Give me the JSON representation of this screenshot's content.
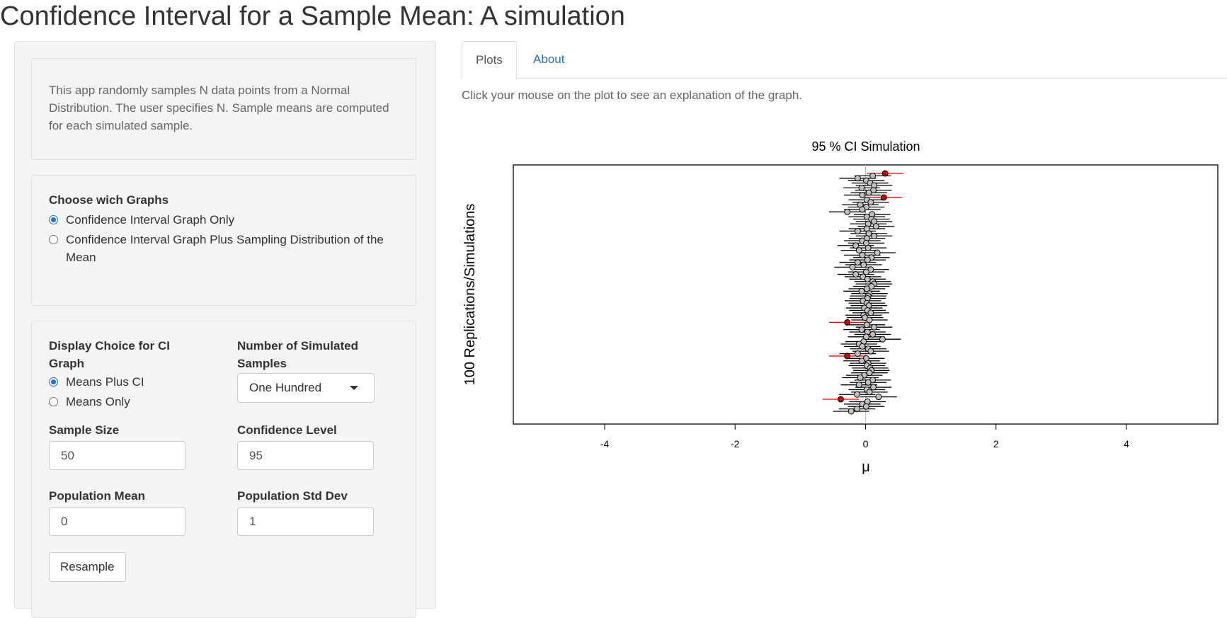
{
  "app": {
    "title": "Confidence Interval for a Sample Mean: A simulation"
  },
  "sidebar": {
    "intro": "This app randomly samples N data points from a Normal Distribution. The user specifies N. Sample means are computed for each simulated sample.",
    "graphs": {
      "label": "Choose wich Graphs",
      "options": [
        "Confidence Interval Graph Only",
        "Confidence Interval Graph Plus Sampling Distribution of the Mean"
      ],
      "selected": 0
    },
    "display": {
      "label": "Display Choice for CI Graph",
      "options": [
        "Means Plus CI",
        "Means Only"
      ],
      "selected": 0
    },
    "num_samples": {
      "label": "Number of Simulated Samples",
      "value": "One Hundred"
    },
    "sample_size": {
      "label": "Sample Size",
      "value": "50"
    },
    "confidence": {
      "label": "Confidence Level",
      "value": "95"
    },
    "pop_mean": {
      "label": "Population Mean",
      "value": "0"
    },
    "pop_sd": {
      "label": "Population Std Dev",
      "value": "1"
    },
    "resample_label": "Resample"
  },
  "tabs": [
    {
      "label": "Plots",
      "active": true
    },
    {
      "label": "About",
      "active": false
    }
  ],
  "main": {
    "hint": "Click your mouse on the plot to see an explanation of the graph."
  },
  "chart_data": {
    "type": "scatter",
    "title": "95 % CI Simulation",
    "xlabel": "μ",
    "ylabel": "100 Replications/Simulations",
    "xlim": [
      -5.4,
      5.4
    ],
    "ylim": [
      1,
      100
    ],
    "x_ticks": [
      "-4",
      "-2",
      "0",
      "2",
      "4"
    ],
    "x_tick_values": [
      -4,
      -2,
      0,
      2,
      4
    ],
    "reference_line": 0,
    "colors": {
      "covers": "#c0c0c0",
      "misses": "#cc0000",
      "interval": "#000000",
      "miss_interval": "#ff0000"
    },
    "series": [
      {
        "x": [
          0.3,
          0.11,
          -0.12,
          0.01,
          0.07,
          0.13,
          -0.06,
          0.12,
          0.05,
          -0.05,
          0.28,
          0.02,
          0.08,
          -0.08,
          0.01,
          -0.05,
          -0.28,
          0.1,
          0.02,
          0.09,
          0.13,
          0.04,
          0.16,
          0.02,
          -0.12,
          0.05,
          0.13,
          0.02,
          -0.05,
          0.01,
          -0.15,
          0.04,
          -0.1,
          0.18,
          -0.05,
          0.09,
          0.03,
          -0.12,
          -0.03,
          -0.2,
          0.08,
          0.01,
          -0.15,
          -0.04,
          0.03,
          0.11,
          0.13,
          0.09,
          0.02,
          -0.06,
          0.06,
          0.04,
          0.03,
          -0.04,
          0.02,
          0.05,
          -0.02,
          0.03,
          0.08,
          -0.03,
          -0.01,
          0.06,
          -0.28,
          0.02,
          0.13,
          -0.06,
          0.03,
          0.11,
          0.01,
          0.26,
          -0.03,
          -0.1,
          -0.05,
          0.04,
          0.08,
          -0.12,
          -0.28,
          0.01,
          -0.06,
          0.04,
          0.02,
          0.07,
          0.09,
          0.06,
          -0.02,
          -0.08,
          0.11,
          0.04,
          -0.1,
          0.12,
          0.02,
          0.06,
          -0.13,
          0.2,
          -0.38,
          0.03,
          -0.05,
          0.01,
          -0.13,
          -0.22
        ],
        "half_width": 0.28,
        "misses": [
          0,
          10,
          62,
          76,
          94
        ]
      }
    ]
  }
}
